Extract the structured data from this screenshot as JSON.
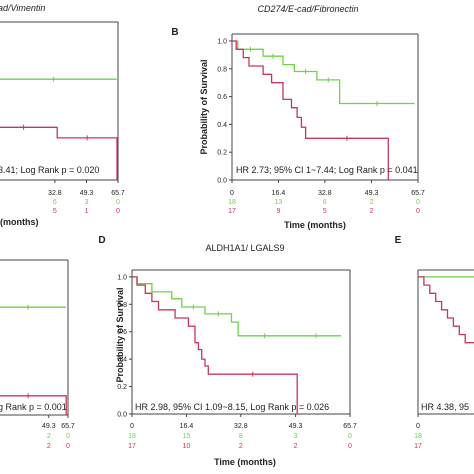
{
  "colors": {
    "green": "#6fd24a",
    "red": "#c8375a",
    "axis": "#444444"
  },
  "chart_data": [
    {
      "id": "A",
      "type": "line",
      "letter": "",
      "title": "E-cad/Vimentin",
      "title_visible": "ad/Vimentin",
      "ylabel": "",
      "xlabel": "(months)",
      "annotation": "3.41; Log Rank p = 0.020",
      "xlim": [
        -1.0,
        65.7
      ],
      "ylim": [
        0,
        1.05
      ],
      "x_ticks": [
        "32.8",
        "49.3",
        "65.7"
      ],
      "x_tick_values": [
        32.8,
        49.3,
        65.7
      ],
      "y_ticks": [],
      "risk_rows": [
        {
          "color": "green",
          "values": [
            "6",
            "3",
            "0"
          ],
          "at": [
            32.8,
            49.3,
            65.7
          ]
        },
        {
          "color": "red",
          "values": [
            "5",
            "1",
            "0"
          ],
          "at": [
            32.8,
            49.3,
            65.7
          ]
        }
      ],
      "series": [
        {
          "color": "green",
          "points": [
            [
              -1,
              0.67
            ],
            [
              65,
              0.67
            ]
          ]
        },
        {
          "color": "red",
          "points": [
            [
              -1,
              0.35
            ],
            [
              34,
              0.35
            ],
            [
              34,
              0.28
            ],
            [
              65.2,
              0.28
            ],
            [
              65.2,
              0.0
            ]
          ]
        }
      ]
    },
    {
      "id": "B",
      "type": "line",
      "letter": "B",
      "title": "CD274/E-cad/Fibronectin",
      "ylabel": "Probability of Survival",
      "xlabel": "Time (months)",
      "annotation": "HR 2.73; 95% CI 1~7.44; Log Rank p = 0.041",
      "xlim": [
        0,
        65.7
      ],
      "ylim": [
        0,
        1.05
      ],
      "x_ticks": [
        "0",
        "16.4",
        "32.8",
        "49.3",
        "65.7"
      ],
      "x_tick_values": [
        0,
        16.4,
        32.8,
        49.3,
        65.7
      ],
      "y_ticks": [
        "0.0",
        "0.2",
        "0.4",
        "0.6",
        "0.8",
        "1.0"
      ],
      "y_tick_values": [
        0,
        0.2,
        0.4,
        0.6,
        0.8,
        1.0
      ],
      "risk_rows": [
        {
          "color": "green",
          "values": [
            "18",
            "13",
            "6",
            "2",
            "0"
          ],
          "at": [
            0,
            16.4,
            32.8,
            49.3,
            65.7
          ]
        },
        {
          "color": "red",
          "values": [
            "17",
            "9",
            "5",
            "2",
            "0"
          ],
          "at": [
            0,
            16.4,
            32.8,
            49.3,
            65.7
          ]
        }
      ],
      "series": [
        {
          "color": "green",
          "points": [
            [
              0,
              1.0
            ],
            [
              2,
              1.0
            ],
            [
              2,
              0.94
            ],
            [
              11,
              0.94
            ],
            [
              11,
              0.89
            ],
            [
              18,
              0.89
            ],
            [
              18,
              0.83
            ],
            [
              22,
              0.83
            ],
            [
              22,
              0.78
            ],
            [
              30,
              0.78
            ],
            [
              30,
              0.72
            ],
            [
              38,
              0.72
            ],
            [
              38,
              0.55
            ],
            [
              64.5,
              0.55
            ]
          ]
        },
        {
          "color": "red",
          "points": [
            [
              0,
              1.0
            ],
            [
              1.5,
              1.0
            ],
            [
              1.5,
              0.94
            ],
            [
              4,
              0.94
            ],
            [
              4,
              0.88
            ],
            [
              6,
              0.88
            ],
            [
              6,
              0.82
            ],
            [
              11,
              0.82
            ],
            [
              11,
              0.76
            ],
            [
              14,
              0.76
            ],
            [
              14,
              0.7
            ],
            [
              18,
              0.7
            ],
            [
              18,
              0.58
            ],
            [
              21,
              0.58
            ],
            [
              21,
              0.52
            ],
            [
              23,
              0.52
            ],
            [
              23,
              0.45
            ],
            [
              24.5,
              0.45
            ],
            [
              24.5,
              0.38
            ],
            [
              26,
              0.38
            ],
            [
              26,
              0.3
            ],
            [
              55.2,
              0.3
            ],
            [
              55.2,
              0.0
            ]
          ]
        }
      ]
    },
    {
      "id": "C",
      "type": "line",
      "letter": "",
      "title": "",
      "ylabel": "",
      "xlabel": "",
      "annotation": "g Rank p = 0.001",
      "xlim": [
        -1.0,
        65.7
      ],
      "ylim": [
        0,
        1.05
      ],
      "x_ticks": [
        "49.3",
        "65.7"
      ],
      "x_tick_values": [
        49.3,
        65.7
      ],
      "y_ticks": [],
      "risk_rows": [
        {
          "color": "green",
          "values": [
            "2",
            "0"
          ],
          "at": [
            49.3,
            65.7
          ]
        },
        {
          "color": "red",
          "values": [
            "2",
            "0"
          ],
          "at": [
            49.3,
            65.7
          ]
        }
      ],
      "series": [
        {
          "color": "green",
          "points": [
            [
              -1,
              0.73
            ],
            [
              64,
              0.73
            ]
          ]
        },
        {
          "color": "red",
          "points": [
            [
              -1,
              0.13
            ],
            [
              64.2,
              0.13
            ],
            [
              64.2,
              0.0
            ]
          ]
        }
      ]
    },
    {
      "id": "D",
      "type": "line",
      "letter": "D",
      "title": "ALDH1A1/ LGALS9",
      "ylabel": "Probability of Survival",
      "xlabel": "Time (months)",
      "annotation": "HR 2.98, 95% CI 1.09~8.15, Log Rank p = 0.026",
      "xlim": [
        0,
        65.7
      ],
      "ylim": [
        0,
        1.05
      ],
      "x_ticks": [
        "0",
        "16.4",
        "32.8",
        "49.3",
        "65.7"
      ],
      "x_tick_values": [
        0,
        16.4,
        32.8,
        49.3,
        65.7
      ],
      "y_ticks": [
        "0.0",
        "0.2",
        "0.4",
        "0.6",
        "0.8",
        "1.0"
      ],
      "y_tick_values": [
        0,
        0.2,
        0.4,
        0.6,
        0.8,
        1.0
      ],
      "risk_rows": [
        {
          "color": "green",
          "values": [
            "18",
            "15",
            "8",
            "3",
            "0"
          ],
          "at": [
            0,
            16.4,
            32.8,
            49.3,
            65.7
          ]
        },
        {
          "color": "red",
          "values": [
            "17",
            "10",
            "2",
            "2",
            "0"
          ],
          "at": [
            0,
            16.4,
            32.8,
            49.3,
            65.7
          ]
        }
      ],
      "series": [
        {
          "color": "green",
          "points": [
            [
              0,
              1.0
            ],
            [
              1.5,
              1.0
            ],
            [
              1.5,
              0.95
            ],
            [
              6,
              0.95
            ],
            [
              6,
              0.89
            ],
            [
              12,
              0.89
            ],
            [
              12,
              0.84
            ],
            [
              15,
              0.84
            ],
            [
              15,
              0.78
            ],
            [
              22,
              0.78
            ],
            [
              22,
              0.73
            ],
            [
              30,
              0.73
            ],
            [
              30,
              0.67
            ],
            [
              32,
              0.67
            ],
            [
              32,
              0.57
            ],
            [
              48,
              0.57
            ],
            [
              48,
              0.57
            ],
            [
              63,
              0.57
            ]
          ]
        },
        {
          "color": "red",
          "points": [
            [
              0,
              1.0
            ],
            [
              1.5,
              1.0
            ],
            [
              1.5,
              0.94
            ],
            [
              4,
              0.94
            ],
            [
              4,
              0.88
            ],
            [
              6,
              0.88
            ],
            [
              6,
              0.82
            ],
            [
              8,
              0.82
            ],
            [
              8,
              0.76
            ],
            [
              13,
              0.76
            ],
            [
              13,
              0.7
            ],
            [
              17,
              0.7
            ],
            [
              17,
              0.64
            ],
            [
              19,
              0.64
            ],
            [
              19,
              0.52
            ],
            [
              20,
              0.52
            ],
            [
              20,
              0.47
            ],
            [
              21,
              0.47
            ],
            [
              21,
              0.4
            ],
            [
              22,
              0.4
            ],
            [
              22,
              0.35
            ],
            [
              23,
              0.35
            ],
            [
              23,
              0.29
            ],
            [
              49.8,
              0.29
            ],
            [
              49.8,
              0.0
            ]
          ]
        }
      ]
    },
    {
      "id": "E",
      "type": "line",
      "letter": "E",
      "title": "",
      "ylabel": "",
      "xlabel": "",
      "annotation": "HR 4.38, 95",
      "xlim": [
        0,
        65.7
      ],
      "ylim": [
        0,
        1.05
      ],
      "x_ticks": [
        "0"
      ],
      "x_tick_values": [
        0
      ],
      "y_ticks": [],
      "risk_rows": [
        {
          "color": "green",
          "values": [
            "18"
          ],
          "at": [
            0
          ]
        },
        {
          "color": "red",
          "values": [
            "17"
          ],
          "at": [
            0
          ]
        }
      ],
      "series": [
        {
          "color": "green",
          "points": [
            [
              0,
              1.0
            ],
            [
              40,
              1.0
            ]
          ]
        },
        {
          "color": "red",
          "points": [
            [
              0,
              1.0
            ],
            [
              2,
              1.0
            ],
            [
              2,
              0.94
            ],
            [
              4,
              0.94
            ],
            [
              4,
              0.88
            ],
            [
              6,
              0.88
            ],
            [
              6,
              0.82
            ],
            [
              8,
              0.82
            ],
            [
              8,
              0.76
            ],
            [
              10,
              0.76
            ],
            [
              10,
              0.7
            ],
            [
              12,
              0.7
            ],
            [
              12,
              0.64
            ],
            [
              14,
              0.64
            ],
            [
              14,
              0.58
            ],
            [
              16,
              0.58
            ],
            [
              16,
              0.52
            ],
            [
              40,
              0.52
            ]
          ]
        }
      ]
    }
  ]
}
